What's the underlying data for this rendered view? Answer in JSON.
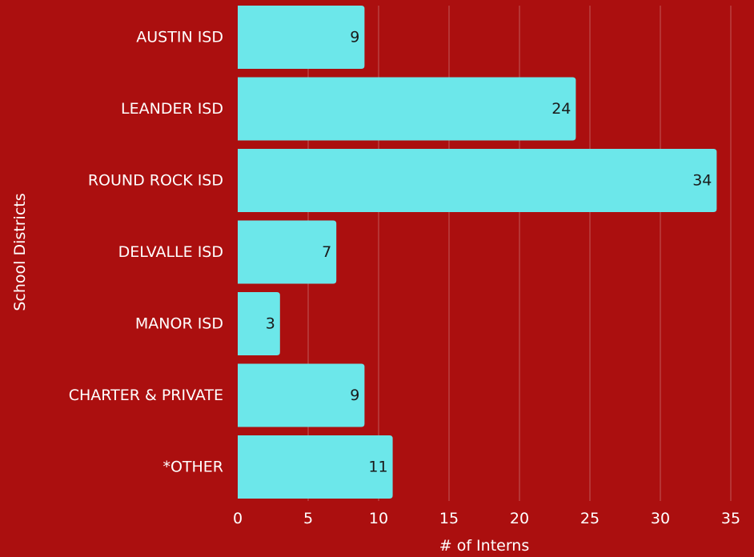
{
  "colors": {
    "background": "#ab0f0f",
    "bar": "#6ce7ea",
    "gridline": "#c0595a",
    "text": "#ffffff",
    "value_label": "#1a1a1a"
  },
  "chart_data": {
    "type": "bar",
    "orientation": "horizontal",
    "title": "",
    "xlabel": "# of Interns",
    "ylabel": "School Districts",
    "categories": [
      "AUSTIN ISD",
      "LEANDER ISD",
      "ROUND ROCK ISD",
      "DELVALLE ISD",
      "MANOR ISD",
      "CHARTER & PRIVATE",
      "*OTHER"
    ],
    "values": [
      9,
      24,
      34,
      7,
      3,
      9,
      11
    ],
    "data_labels": [
      "9",
      "24",
      "34",
      "7",
      "3",
      "9",
      "11"
    ],
    "xlim": [
      0,
      35
    ],
    "xticks": [
      0,
      5,
      10,
      15,
      20,
      25,
      30,
      35
    ],
    "xtick_labels": [
      "0",
      "5",
      "10",
      "15",
      "20",
      "25",
      "30",
      "35"
    ],
    "grid": "vertical",
    "legend": "none"
  }
}
